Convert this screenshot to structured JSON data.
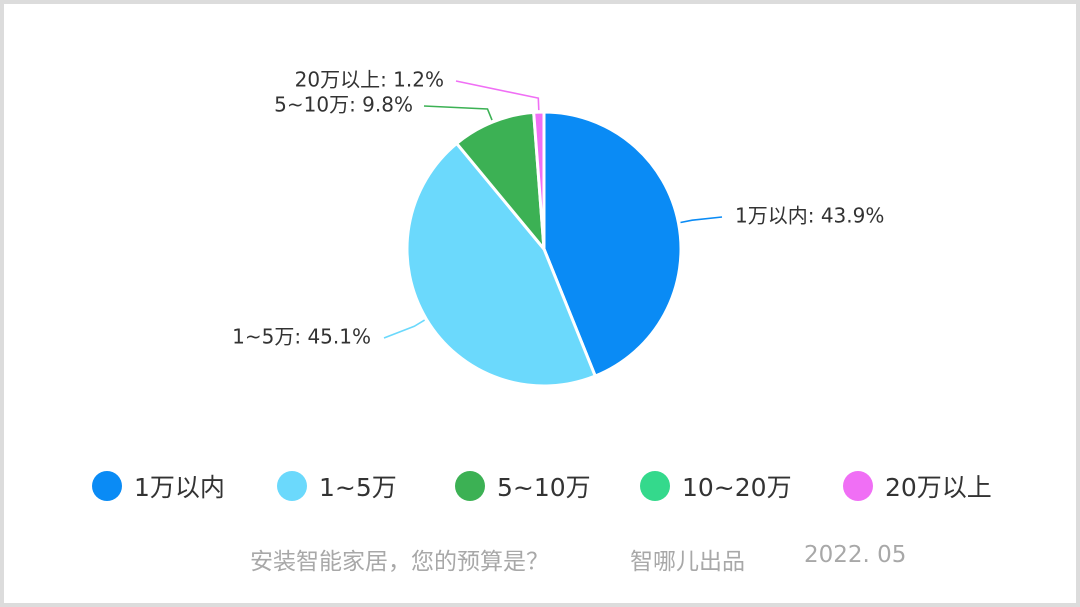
{
  "chart_data": {
    "type": "pie",
    "slices": [
      {
        "label": "1万以内",
        "value": 43.9,
        "color": "#0a8bf5",
        "data_label": "1万以内: 43.9%"
      },
      {
        "label": "1~5万",
        "value": 45.1,
        "color": "#6bd9fc",
        "data_label": "1~5万: 45.1%"
      },
      {
        "label": "5~10万",
        "value": 9.8,
        "color": "#3cb154",
        "data_label": "5~10万: 9.8%"
      },
      {
        "label": "10~20万",
        "value": 0,
        "color": "#34d98c",
        "data_label": ""
      },
      {
        "label": "20万以上",
        "value": 1.2,
        "color": "#f06ff5",
        "data_label": "20万以上: 1.2%"
      }
    ],
    "legend": [
      "1万以内",
      "1~5万",
      "5~10万",
      "10~20万",
      "20万以上"
    ],
    "legend_position": "bottom",
    "start_angle": "12 o'clock",
    "direction": "clockwise"
  },
  "footer": {
    "caption": "安装智能家居，您的预算是？",
    "source": "智哪儿出品",
    "date": "2022. 05"
  }
}
